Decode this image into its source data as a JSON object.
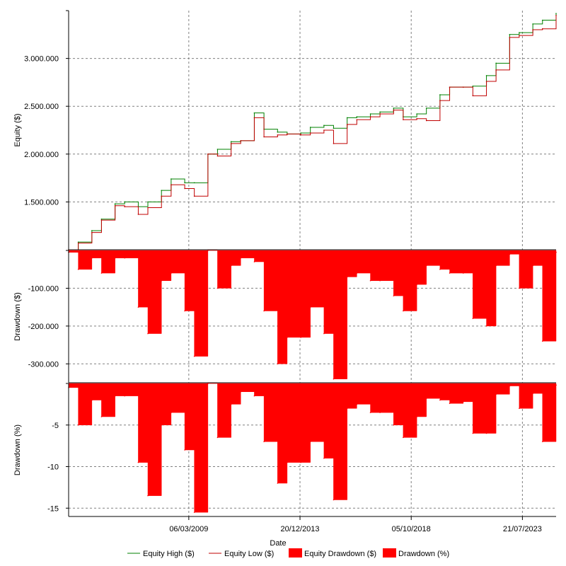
{
  "colors": {
    "equity_high": "#008000",
    "equity_low": "#c00000",
    "drawdown_fill": "#ff0000",
    "grid": "#808080",
    "axis": "#000000"
  },
  "chart_data": [
    {
      "type": "line",
      "panel": "equity",
      "ylabel": "Equity ($)",
      "ylim": [
        1000000,
        3500000
      ],
      "y_ticks": [
        1500000,
        2000000,
        2500000,
        3000000
      ],
      "y_tick_labels": [
        "1.500.000",
        "2.000.000",
        "2.500.000",
        "3.000.000"
      ],
      "grid": true,
      "x": [
        "2004-01-01",
        "2004-06-01",
        "2005-01-01",
        "2005-06-01",
        "2006-01-01",
        "2006-06-01",
        "2007-01-01",
        "2007-06-01",
        "2008-01-01",
        "2008-06-01",
        "2009-01-01",
        "2009-06-01",
        "2010-01-01",
        "2010-06-01",
        "2011-01-01",
        "2011-06-01",
        "2012-01-01",
        "2012-06-01",
        "2013-01-01",
        "2013-06-01",
        "2014-01-01",
        "2014-06-01",
        "2015-01-01",
        "2015-06-01",
        "2016-01-01",
        "2016-06-01",
        "2017-01-01",
        "2017-06-01",
        "2018-01-01",
        "2018-06-01",
        "2019-01-01",
        "2019-06-01",
        "2020-01-01",
        "2020-06-01",
        "2021-01-01",
        "2021-06-01",
        "2022-01-01",
        "2022-06-01",
        "2023-01-01",
        "2023-06-01",
        "2024-01-01",
        "2024-06-01",
        "2025-01-01"
      ],
      "series": [
        {
          "name": "Equity High ($)",
          "values": [
            1000000,
            1080000,
            1200000,
            1320000,
            1480000,
            1500000,
            1450000,
            1500000,
            1620000,
            1740000,
            1700000,
            1700000,
            2000000,
            2050000,
            2130000,
            2140000,
            2430000,
            2260000,
            2230000,
            2210000,
            2220000,
            2280000,
            2300000,
            2270000,
            2380000,
            2390000,
            2420000,
            2440000,
            2480000,
            2390000,
            2420000,
            2480000,
            2620000,
            2700000,
            2700000,
            2710000,
            2820000,
            2950000,
            3250000,
            3270000,
            3360000,
            3400000,
            3470000
          ]
        },
        {
          "name": "Equity Low ($)",
          "values": [
            1000000,
            1070000,
            1180000,
            1310000,
            1460000,
            1450000,
            1370000,
            1440000,
            1560000,
            1680000,
            1640000,
            1560000,
            2000000,
            1980000,
            2110000,
            2140000,
            2380000,
            2180000,
            2200000,
            2210000,
            2200000,
            2220000,
            2250000,
            2110000,
            2310000,
            2360000,
            2390000,
            2420000,
            2460000,
            2360000,
            2370000,
            2350000,
            2560000,
            2700000,
            2700000,
            2610000,
            2760000,
            2880000,
            3220000,
            3240000,
            3300000,
            3310000,
            3450000
          ]
        }
      ]
    },
    {
      "type": "area",
      "panel": "drawdown_usd",
      "ylabel": "Drawdown ($)",
      "ylim": [
        -350000,
        0
      ],
      "y_ticks": [
        -100000,
        -200000,
        -300000
      ],
      "y_tick_labels": [
        "-100.000",
        "-200.000",
        "-300.000"
      ],
      "grid": true,
      "x": [
        "2004-01-01",
        "2004-06-01",
        "2005-01-01",
        "2005-06-01",
        "2006-01-01",
        "2006-06-01",
        "2007-01-01",
        "2007-06-01",
        "2008-01-01",
        "2008-06-01",
        "2009-01-01",
        "2009-06-01",
        "2010-01-01",
        "2010-06-01",
        "2011-01-01",
        "2011-06-01",
        "2012-01-01",
        "2012-06-01",
        "2013-01-01",
        "2013-06-01",
        "2014-01-01",
        "2014-06-01",
        "2015-01-01",
        "2015-06-01",
        "2016-01-01",
        "2016-06-01",
        "2017-01-01",
        "2017-06-01",
        "2018-01-01",
        "2018-06-01",
        "2019-01-01",
        "2019-06-01",
        "2020-01-01",
        "2020-06-01",
        "2021-01-01",
        "2021-06-01",
        "2022-01-01",
        "2022-06-01",
        "2023-01-01",
        "2023-06-01",
        "2024-01-01",
        "2024-06-01",
        "2025-01-01"
      ],
      "series": [
        {
          "name": "Equity Drawdown ($)",
          "values": [
            -5000,
            -50000,
            -20000,
            -60000,
            -20000,
            -20000,
            -150000,
            -220000,
            -80000,
            -60000,
            -160000,
            -280000,
            0,
            -100000,
            -40000,
            -20000,
            -30000,
            -160000,
            -300000,
            -230000,
            -230000,
            -150000,
            -220000,
            -340000,
            -70000,
            -60000,
            -80000,
            -80000,
            -120000,
            -160000,
            -90000,
            -40000,
            -50000,
            -60000,
            -60000,
            -180000,
            -200000,
            -40000,
            -10000,
            -100000,
            -40000,
            -240000,
            -5000
          ]
        }
      ]
    },
    {
      "type": "area",
      "panel": "drawdown_pct",
      "ylabel": "Drawdown (%)",
      "ylim": [
        -16,
        0
      ],
      "y_ticks": [
        -5,
        -10,
        -15
      ],
      "y_tick_labels": [
        "-5",
        "-10",
        "-15"
      ],
      "x_ticks": [
        "2009-03-06",
        "2013-12-20",
        "2018-10-05",
        "2023-07-21"
      ],
      "x_tick_labels": [
        "06/03/2009",
        "20/12/2013",
        "05/10/2018",
        "21/07/2023"
      ],
      "xlabel": "Date",
      "grid": true,
      "x": [
        "2004-01-01",
        "2004-06-01",
        "2005-01-01",
        "2005-06-01",
        "2006-01-01",
        "2006-06-01",
        "2007-01-01",
        "2007-06-01",
        "2008-01-01",
        "2008-06-01",
        "2009-01-01",
        "2009-06-01",
        "2010-01-01",
        "2010-06-01",
        "2011-01-01",
        "2011-06-01",
        "2012-01-01",
        "2012-06-01",
        "2013-01-01",
        "2013-06-01",
        "2014-01-01",
        "2014-06-01",
        "2015-01-01",
        "2015-06-01",
        "2016-01-01",
        "2016-06-01",
        "2017-01-01",
        "2017-06-01",
        "2018-01-01",
        "2018-06-01",
        "2019-01-01",
        "2019-06-01",
        "2020-01-01",
        "2020-06-01",
        "2021-01-01",
        "2021-06-01",
        "2022-01-01",
        "2022-06-01",
        "2023-01-01",
        "2023-06-01",
        "2024-01-01",
        "2024-06-01",
        "2025-01-01"
      ],
      "series": [
        {
          "name": "Drawdown (%)",
          "values": [
            -0.5,
            -5,
            -2,
            -4,
            -1.5,
            -1.5,
            -9.5,
            -13.5,
            -5,
            -3.5,
            -8,
            -15.5,
            0,
            -6.5,
            -2.5,
            -1,
            -1.5,
            -7,
            -12,
            -9.5,
            -9.5,
            -7,
            -9,
            -14,
            -3,
            -2.5,
            -3.5,
            -3.5,
            -5,
            -6.5,
            -4,
            -1.8,
            -2,
            -2.4,
            -2.2,
            -6,
            -6,
            -1.3,
            -0.3,
            -3,
            -1.2,
            -7,
            -0.2
          ]
        }
      ]
    }
  ],
  "legend": {
    "position": "bottom",
    "items": [
      {
        "label": "Equity High ($)",
        "swatch": "line",
        "color": "#008000"
      },
      {
        "label": "Equity Low ($)",
        "swatch": "line",
        "color": "#c00000"
      },
      {
        "label": "Equity Drawdown ($)",
        "swatch": "box",
        "color": "#ff0000"
      },
      {
        "label": "Drawdown (%)",
        "swatch": "box",
        "color": "#ff0000"
      }
    ]
  }
}
